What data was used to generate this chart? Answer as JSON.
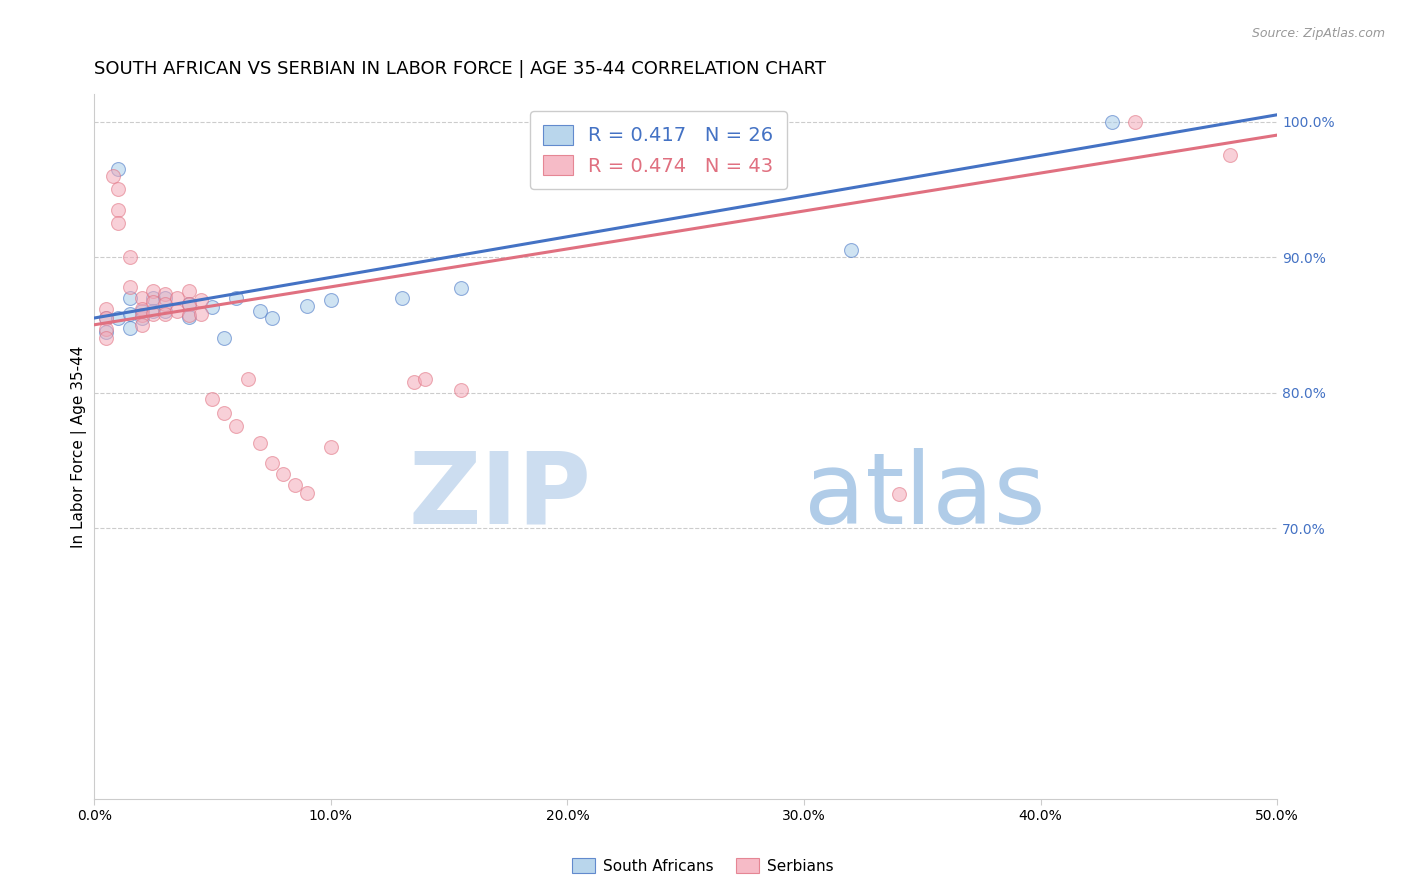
{
  "title": "SOUTH AFRICAN VS SERBIAN IN LABOR FORCE | AGE 35-44 CORRELATION CHART",
  "source": "Source: ZipAtlas.com",
  "ylabel": "In Labor Force | Age 35-44",
  "xlim": [
    0.0,
    0.5
  ],
  "ylim": [
    0.5,
    1.02
  ],
  "xticks": [
    0.0,
    0.1,
    0.2,
    0.3,
    0.4,
    0.5
  ],
  "xtick_labels": [
    "0.0%",
    "10.0%",
    "20.0%",
    "30.0%",
    "40.0%",
    "50.0%"
  ],
  "yticks": [
    0.7,
    0.8,
    0.9,
    1.0
  ],
  "ytick_labels": [
    "70.0%",
    "80.0%",
    "90.0%",
    "100.0%"
  ],
  "legend_blue_text": "R = 0.417   N = 26",
  "legend_pink_text": "R = 0.474   N = 43",
  "blue_color": "#a8cce8",
  "pink_color": "#f4aab9",
  "blue_line_color": "#4472c4",
  "pink_line_color": "#e07080",
  "blue_scatter_x": [
    0.005,
    0.005,
    0.01,
    0.01,
    0.015,
    0.015,
    0.015,
    0.02,
    0.02,
    0.025,
    0.025,
    0.03,
    0.03,
    0.04,
    0.04,
    0.05,
    0.055,
    0.06,
    0.07,
    0.075,
    0.09,
    0.1,
    0.13,
    0.155,
    0.32,
    0.43
  ],
  "blue_scatter_y": [
    0.855,
    0.845,
    0.965,
    0.855,
    0.87,
    0.858,
    0.848,
    0.86,
    0.855,
    0.87,
    0.86,
    0.87,
    0.86,
    0.865,
    0.856,
    0.863,
    0.84,
    0.87,
    0.86,
    0.855,
    0.864,
    0.868,
    0.87,
    0.877,
    0.905,
    1.0
  ],
  "pink_scatter_x": [
    0.005,
    0.005,
    0.005,
    0.005,
    0.008,
    0.01,
    0.01,
    0.01,
    0.015,
    0.015,
    0.02,
    0.02,
    0.02,
    0.02,
    0.025,
    0.025,
    0.025,
    0.03,
    0.03,
    0.03,
    0.035,
    0.035,
    0.04,
    0.04,
    0.04,
    0.045,
    0.045,
    0.05,
    0.055,
    0.06,
    0.065,
    0.07,
    0.075,
    0.08,
    0.085,
    0.09,
    0.1,
    0.135,
    0.14,
    0.155,
    0.34,
    0.44,
    0.48
  ],
  "pink_scatter_y": [
    0.862,
    0.855,
    0.847,
    0.84,
    0.96,
    0.95,
    0.935,
    0.925,
    0.9,
    0.878,
    0.87,
    0.862,
    0.857,
    0.85,
    0.875,
    0.867,
    0.858,
    0.873,
    0.865,
    0.858,
    0.87,
    0.86,
    0.875,
    0.865,
    0.857,
    0.868,
    0.858,
    0.795,
    0.785,
    0.775,
    0.81,
    0.763,
    0.748,
    0.74,
    0.732,
    0.726,
    0.76,
    0.808,
    0.81,
    0.802,
    0.725,
    1.0,
    0.975
  ],
  "blue_line_x": [
    0.0,
    0.5
  ],
  "blue_line_y": [
    0.855,
    1.005
  ],
  "pink_line_x": [
    0.0,
    0.5
  ],
  "pink_line_y": [
    0.85,
    0.99
  ],
  "background_color": "#ffffff",
  "grid_color": "#cccccc",
  "title_fontsize": 13,
  "axis_label_fontsize": 11,
  "tick_fontsize": 10,
  "marker_size": 100,
  "marker_alpha": 0.55,
  "right_axis_color": "#4472c4"
}
